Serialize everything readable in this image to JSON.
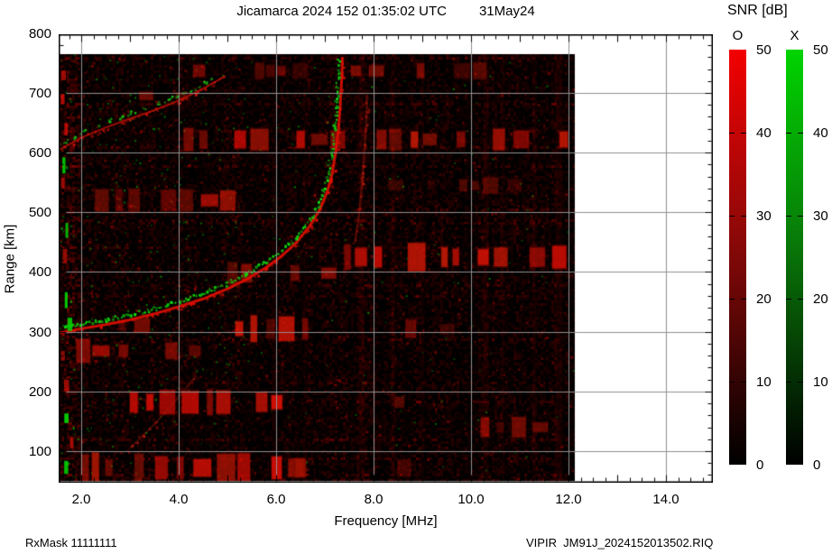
{
  "header": {
    "title": "Jicamarca 2024 152 01:35:02 UTC",
    "date": "31May24"
  },
  "axes": {
    "xlabel": "Frequency [MHz]",
    "ylabel": "Range [km]",
    "x_ticks": [
      {
        "value": 2.0,
        "label": "2.0"
      },
      {
        "value": 4.0,
        "label": "4.0"
      },
      {
        "value": 6.0,
        "label": "6.0"
      },
      {
        "value": 8.0,
        "label": "8.0"
      },
      {
        "value": 10.0,
        "label": "10.0"
      },
      {
        "value": 12.0,
        "label": "12.0"
      },
      {
        "value": 14.0,
        "label": "14.0"
      }
    ],
    "y_ticks": [
      {
        "value": 100,
        "label": "100"
      },
      {
        "value": 200,
        "label": "200"
      },
      {
        "value": 300,
        "label": "300"
      },
      {
        "value": 400,
        "label": "400"
      },
      {
        "value": 500,
        "label": "500"
      },
      {
        "value": 600,
        "label": "600"
      },
      {
        "value": 700,
        "label": "700"
      },
      {
        "value": 800,
        "label": "800"
      }
    ],
    "x_minor_step_mhz": 0.25,
    "y_minor_step_km": 20,
    "grid_color": "#909090"
  },
  "colorbar": {
    "title": "SNR [dB]",
    "min_db": 0,
    "max_db": 50,
    "ticks": [
      {
        "value": 0,
        "label": "0"
      },
      {
        "value": 10,
        "label": "10"
      },
      {
        "value": 20,
        "label": "20"
      },
      {
        "value": 30,
        "label": "30"
      },
      {
        "value": 40,
        "label": "40"
      },
      {
        "value": 50,
        "label": "50"
      }
    ],
    "bars": [
      {
        "mode": "O",
        "top_color": "#f40000"
      },
      {
        "mode": "X",
        "top_color": "#00d400"
      }
    ]
  },
  "footer": {
    "rx_mask": "RxMask 11111111",
    "file_label": "VIPIR  JM91J_2024152013502.RIQ"
  },
  "chart_data": {
    "type": "heatmap",
    "title": "Jicamarca 2024 152 01:35:02 UTC 31May24",
    "xlabel": "Frequency [MHz]",
    "ylabel": "Range [km]",
    "x_range_mhz": [
      1.54,
      14.96
    ],
    "data_x_range_mhz": [
      1.54,
      12.13
    ],
    "y_range_km": [
      47,
      800
    ],
    "data_y_range_km": [
      50,
      765
    ],
    "grid": true,
    "snr_scale_db": [
      0,
      50
    ],
    "modes": {
      "O": "#e01000",
      "X": "#10e010"
    },
    "traces": [
      {
        "name": "F-layer O-mode",
        "mode": "O",
        "style": "line",
        "color": "#e01000",
        "width": 3,
        "alpha": 0.9,
        "speckle": 0.5,
        "gaps": [
          [
            4.38,
            4.74
          ]
        ],
        "points": [
          [
            1.55,
            298
          ],
          [
            2.0,
            305
          ],
          [
            2.5,
            312
          ],
          [
            3.0,
            320
          ],
          [
            3.5,
            330
          ],
          [
            4.0,
            342
          ],
          [
            4.5,
            355
          ],
          [
            5.0,
            372
          ],
          [
            5.4,
            388
          ],
          [
            5.8,
            408
          ],
          [
            6.1,
            426
          ],
          [
            6.4,
            448
          ],
          [
            6.7,
            478
          ],
          [
            6.9,
            505
          ],
          [
            7.05,
            535
          ],
          [
            7.15,
            565
          ],
          [
            7.22,
            600
          ],
          [
            7.28,
            640
          ],
          [
            7.32,
            685
          ],
          [
            7.35,
            730
          ],
          [
            7.36,
            758
          ]
        ]
      },
      {
        "name": "F-layer X-mode",
        "mode": "X",
        "style": "speckle",
        "color": "#10e010",
        "width": 2.4,
        "alpha": 0.95,
        "speckle": 0.9,
        "gaps": [
          [
            4.38,
            4.74
          ]
        ],
        "points": [
          [
            1.54,
            308
          ],
          [
            2.0,
            315
          ],
          [
            2.5,
            322
          ],
          [
            3.0,
            330
          ],
          [
            3.5,
            340
          ],
          [
            4.0,
            352
          ],
          [
            4.5,
            366
          ],
          [
            5.0,
            383
          ],
          [
            5.4,
            399
          ],
          [
            5.8,
            420
          ],
          [
            6.1,
            438
          ],
          [
            6.4,
            460
          ],
          [
            6.6,
            480
          ],
          [
            6.8,
            505
          ],
          [
            6.95,
            535
          ],
          [
            7.05,
            565
          ],
          [
            7.12,
            600
          ],
          [
            7.18,
            640
          ],
          [
            7.22,
            685
          ],
          [
            7.25,
            730
          ],
          [
            7.26,
            758
          ]
        ]
      },
      {
        "name": "second-hop O-mode",
        "mode": "O",
        "style": "line",
        "color": "#cc1208",
        "width": 2,
        "alpha": 0.75,
        "speckle": 0.4,
        "gaps": [],
        "points": [
          [
            1.55,
            605
          ],
          [
            2.0,
            625
          ],
          [
            2.5,
            642
          ],
          [
            3.0,
            657
          ],
          [
            3.5,
            671
          ],
          [
            4.0,
            687
          ],
          [
            4.4,
            703
          ],
          [
            4.7,
            716
          ],
          [
            4.95,
            728
          ]
        ]
      },
      {
        "name": "second-hop X-mode",
        "mode": "X",
        "style": "speckle",
        "color": "#15cc15",
        "width": 2,
        "alpha": 0.8,
        "speckle": 0.5,
        "gaps": [],
        "points": [
          [
            1.55,
            615
          ],
          [
            2.0,
            635
          ],
          [
            2.5,
            652
          ],
          [
            3.0,
            667
          ],
          [
            3.5,
            681
          ],
          [
            4.0,
            697
          ],
          [
            4.4,
            713
          ],
          [
            4.7,
            726
          ]
        ]
      },
      {
        "name": "X-asymptote-faint",
        "mode": "O",
        "style": "line",
        "color": "#d02010",
        "width": 2.5,
        "alpha": 0.33,
        "speckle": 0.15,
        "gaps": [],
        "points": [
          [
            7.62,
            450
          ],
          [
            7.7,
            495
          ],
          [
            7.76,
            545
          ],
          [
            7.81,
            600
          ],
          [
            7.85,
            655
          ],
          [
            7.87,
            695
          ]
        ]
      },
      {
        "name": "oblique-faint",
        "mode": "O",
        "style": "line",
        "color": "#c02010",
        "width": 2,
        "alpha": 0.3,
        "speckle": 0.1,
        "gaps": [],
        "points": [
          [
            3.0,
            105
          ],
          [
            3.5,
            145
          ],
          [
            4.0,
            190
          ],
          [
            4.35,
            225
          ]
        ]
      }
    ],
    "rfi_bands": [
      {
        "km": 737,
        "half": 6,
        "f0": 4.3,
        "f1": 12.1,
        "i": 0.45,
        "d": 0.35
      },
      {
        "km": 695,
        "half": 5,
        "f0": 2.8,
        "f1": 5.0,
        "i": 0.5,
        "d": 0.5
      },
      {
        "km": 622,
        "half": 7,
        "f0": 3.0,
        "f1": 12.1,
        "i": 0.8,
        "d": 0.55
      },
      {
        "km": 520,
        "half": 7,
        "f0": 1.8,
        "f1": 5.2,
        "i": 0.65,
        "d": 0.55
      },
      {
        "km": 545,
        "half": 5,
        "f0": 8.3,
        "f1": 11.6,
        "i": 0.35,
        "d": 0.4
      },
      {
        "km": 425,
        "half": 9,
        "f0": 7.4,
        "f1": 12.1,
        "i": 0.95,
        "d": 0.8
      },
      {
        "km": 398,
        "half": 7,
        "f0": 5.0,
        "f1": 7.4,
        "i": 0.6,
        "d": 0.6
      },
      {
        "km": 310,
        "half": 6,
        "f0": 1.8,
        "f1": 3.1,
        "i": 0.5,
        "d": 0.5
      },
      {
        "km": 305,
        "half": 8,
        "f0": 4.9,
        "f1": 6.6,
        "i": 0.75,
        "d": 0.6
      },
      {
        "km": 305,
        "half": 6,
        "f0": 8.2,
        "f1": 10.4,
        "i": 0.35,
        "d": 0.35
      },
      {
        "km": 268,
        "half": 7,
        "f0": 1.9,
        "f1": 5.2,
        "i": 0.55,
        "d": 0.5
      },
      {
        "km": 182,
        "half": 8,
        "f0": 3.0,
        "f1": 6.8,
        "i": 0.85,
        "d": 0.7
      },
      {
        "km": 182,
        "half": 6,
        "f0": 6.8,
        "f1": 9.3,
        "i": 0.4,
        "d": 0.35
      },
      {
        "km": 140,
        "half": 6,
        "f0": 10.2,
        "f1": 12.1,
        "i": 0.45,
        "d": 0.5
      },
      {
        "km": 72,
        "half": 9,
        "f0": 2.0,
        "f1": 6.4,
        "i": 0.9,
        "d": 0.75
      },
      {
        "km": 72,
        "half": 6,
        "f0": 6.4,
        "f1": 9.6,
        "i": 0.45,
        "d": 0.4
      }
    ],
    "interference_columns": [
      {
        "f": 7.75,
        "w": 6,
        "a": 0.1
      },
      {
        "f": 8.4,
        "w": 5,
        "a": 0.08
      },
      {
        "f": 9.0,
        "w": 4,
        "a": 0.06
      },
      {
        "f": 10.3,
        "w": 6,
        "a": 0.09
      },
      {
        "f": 10.65,
        "w": 4,
        "a": 0.07
      },
      {
        "f": 11.3,
        "w": 5,
        "a": 0.08
      },
      {
        "f": 11.8,
        "w": 8,
        "a": 0.1
      },
      {
        "f": 5.95,
        "w": 4,
        "a": 0.06
      },
      {
        "f": 6.6,
        "w": 4,
        "a": 0.05
      }
    ],
    "left_edge_green_blobs_km": [
      576,
      470,
      350,
      310,
      145,
      72
    ],
    "left_edge_red_blobs_km": [
      728,
      690,
      640,
      545,
      430,
      255,
      205,
      112
    ],
    "noise": {
      "base_density": 0.6,
      "speckle_count": 2600,
      "green_dot_count": 420,
      "left_boost_f_below": 2.1
    }
  }
}
